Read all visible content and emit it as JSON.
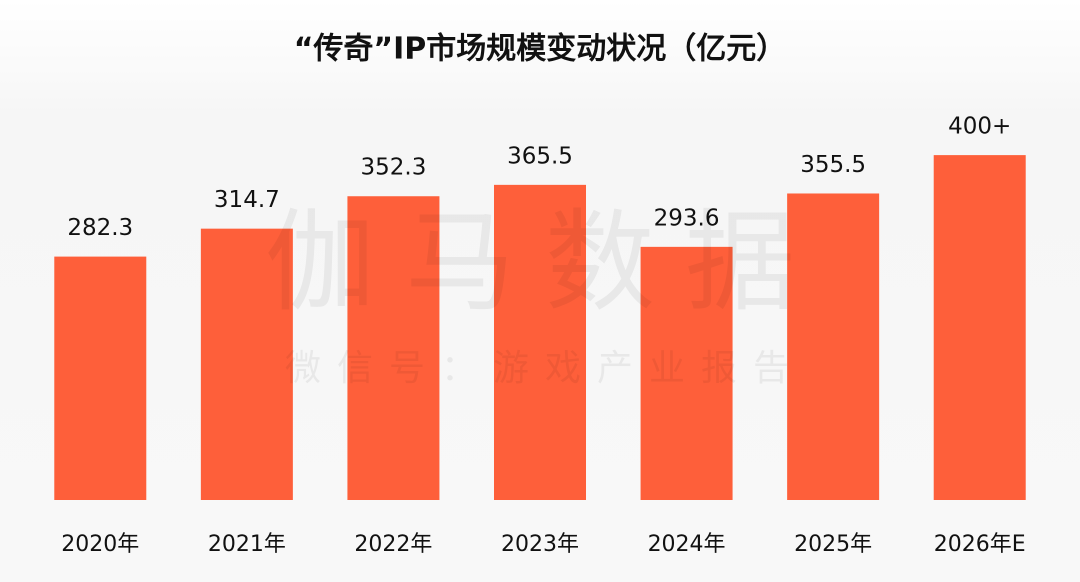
{
  "chart_data": {
    "type": "bar",
    "title": "“传奇”IP市场规模变动状况（亿元）",
    "categories": [
      "2020年",
      "2021年",
      "2022年",
      "2023年",
      "2024年",
      "2025年",
      "2026年E"
    ],
    "values": [
      282.3,
      314.7,
      352.3,
      365.5,
      293.6,
      355.5,
      400
    ],
    "value_labels": [
      "282.3",
      "314.7",
      "352.3",
      "365.5",
      "293.6",
      "355.5",
      "400+"
    ],
    "color": "#fe5f3a",
    "ylim": [
      0,
      450
    ],
    "watermark": {
      "main": "伽马数据",
      "sub": "微信号：游戏产业报告"
    }
  }
}
